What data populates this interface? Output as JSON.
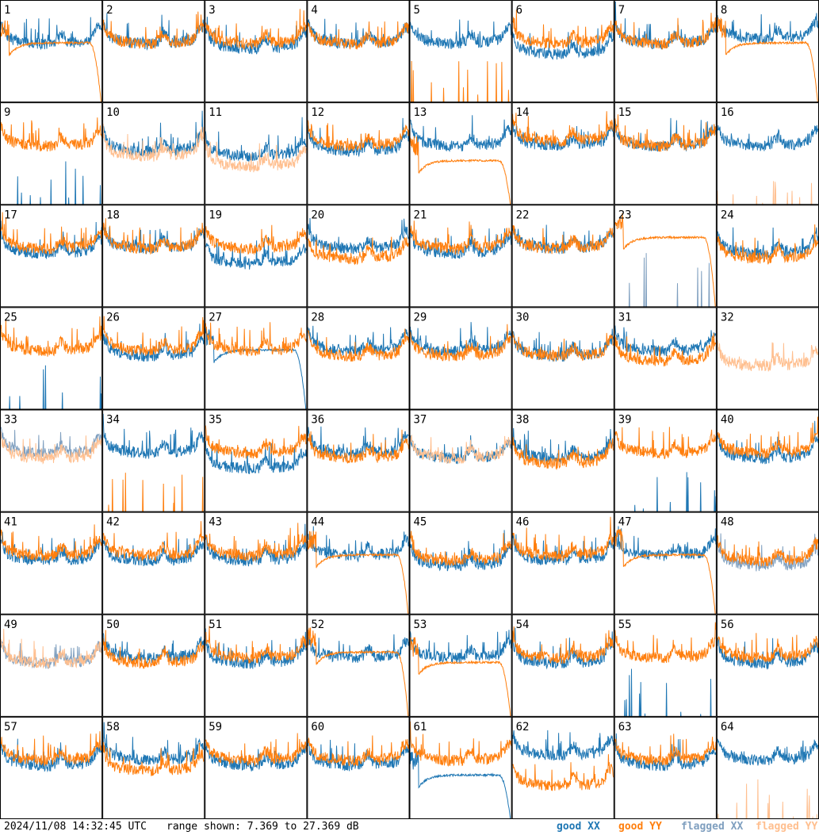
{
  "footer": {
    "timestamp": "2024/11/08 14:32:45 UTC",
    "range_text": "range shown: 7.369 to 27.369 dB"
  },
  "legend": [
    {
      "word": "good",
      "pol": "XX",
      "color": "#1f77b4"
    },
    {
      "word": "good",
      "pol": "YY",
      "color": "#ff7f0e"
    },
    {
      "word": "flagged",
      "pol": "XX",
      "color": "#7f9fbf"
    },
    {
      "word": "flagged",
      "pol": "YY",
      "color": "#ffbf8f"
    }
  ],
  "colors": {
    "good_xx": "#1f77b4",
    "good_yy": "#ff7f0e",
    "flagged_xx": "#7f9fbf",
    "flagged_yy": "#ffbf8f",
    "border": "#000000"
  },
  "chart_data": {
    "type": "line",
    "description_of_axes": "x: frequency channel (unlabeled); y: power in dB",
    "ylim": [
      7.369,
      27.369
    ],
    "grid_rows": 8,
    "grid_cols": 8,
    "panels": [
      {
        "label": "1",
        "xx": "good",
        "yy": "good",
        "xx_shape": "normal",
        "yy_shape": "rolloff",
        "xx_level": 20,
        "yy_level": 19
      },
      {
        "label": "2",
        "xx": "good",
        "yy": "good",
        "xx_shape": "normal",
        "yy_shape": "normal",
        "xx_level": 20,
        "yy_level": 20
      },
      {
        "label": "3",
        "xx": "good",
        "yy": "good",
        "xx_shape": "normal",
        "yy_shape": "normal",
        "xx_level": 19,
        "yy_level": 20
      },
      {
        "label": "4",
        "xx": "good",
        "yy": "good",
        "xx_shape": "normal",
        "yy_shape": "normal",
        "xx_level": 20,
        "yy_level": 20
      },
      {
        "label": "5",
        "xx": "good",
        "yy": "good",
        "xx_shape": "normal",
        "yy_shape": "spikes",
        "xx_level": 20,
        "yy_level": 8
      },
      {
        "label": "6",
        "xx": "good",
        "yy": "good",
        "xx_shape": "normal",
        "yy_shape": "normal",
        "xx_level": 18,
        "yy_level": 20
      },
      {
        "label": "7",
        "xx": "good",
        "yy": "good",
        "xx_shape": "normal",
        "yy_shape": "normal",
        "xx_level": 20,
        "yy_level": 20
      },
      {
        "label": "8",
        "xx": "good",
        "yy": "good",
        "xx_shape": "normal",
        "yy_shape": "rolloff",
        "xx_level": 21,
        "yy_level": 19
      },
      {
        "label": "9",
        "xx": "good",
        "yy": "good",
        "xx_shape": "spikes",
        "yy_shape": "normal",
        "xx_level": 8,
        "yy_level": 20
      },
      {
        "label": "10",
        "xx": "good",
        "yy": "flagged",
        "xx_shape": "normal",
        "yy_shape": "normal",
        "xx_level": 19,
        "yy_level": 18
      },
      {
        "label": "11",
        "xx": "good",
        "yy": "flagged",
        "xx_shape": "normal",
        "yy_shape": "normal",
        "xx_level": 18,
        "yy_level": 16
      },
      {
        "label": "12",
        "xx": "good",
        "yy": "good",
        "xx_shape": "normal",
        "yy_shape": "normal",
        "xx_level": 19,
        "yy_level": 20
      },
      {
        "label": "13",
        "xx": "good",
        "yy": "good",
        "xx_shape": "normal",
        "yy_shape": "rolloff",
        "xx_level": 20,
        "yy_level": 16
      },
      {
        "label": "14",
        "xx": "good",
        "yy": "good",
        "xx_shape": "normal",
        "yy_shape": "normal",
        "xx_level": 20,
        "yy_level": 21
      },
      {
        "label": "15",
        "xx": "good",
        "yy": "good",
        "xx_shape": "normal",
        "yy_shape": "normal",
        "xx_level": 20,
        "yy_level": 20
      },
      {
        "label": "16",
        "xx": "good",
        "yy": "flagged",
        "xx_shape": "normal",
        "yy_shape": "spikes",
        "xx_level": 20,
        "yy_level": 8
      },
      {
        "label": "17",
        "xx": "good",
        "yy": "good",
        "xx_shape": "normal",
        "yy_shape": "normal",
        "xx_level": 19,
        "yy_level": 20
      },
      {
        "label": "18",
        "xx": "good",
        "yy": "good",
        "xx_shape": "normal",
        "yy_shape": "normal",
        "xx_level": 20,
        "yy_level": 20
      },
      {
        "label": "19",
        "xx": "good",
        "yy": "good",
        "xx_shape": "normal",
        "yy_shape": "normal",
        "xx_level": 17,
        "yy_level": 20
      },
      {
        "label": "20",
        "xx": "good",
        "yy": "good",
        "xx_shape": "normal",
        "yy_shape": "normal",
        "xx_level": 20,
        "yy_level": 18
      },
      {
        "label": "21",
        "xx": "good",
        "yy": "good",
        "xx_shape": "normal",
        "yy_shape": "normal",
        "xx_level": 19,
        "yy_level": 20
      },
      {
        "label": "22",
        "xx": "good",
        "yy": "good",
        "xx_shape": "normal",
        "yy_shape": "normal",
        "xx_level": 20,
        "yy_level": 20
      },
      {
        "label": "23",
        "xx": "flagged",
        "yy": "good",
        "xx_shape": "spikes",
        "yy_shape": "rolloff",
        "xx_level": 10,
        "yy_level": 21
      },
      {
        "label": "24",
        "xx": "good",
        "yy": "good",
        "xx_shape": "normal",
        "yy_shape": "normal",
        "xx_level": 19,
        "yy_level": 18
      },
      {
        "label": "25",
        "xx": "good",
        "yy": "good",
        "xx_shape": "spikes",
        "yy_shape": "normal",
        "xx_level": 8,
        "yy_level": 20
      },
      {
        "label": "26",
        "xx": "good",
        "yy": "good",
        "xx_shape": "normal",
        "yy_shape": "normal",
        "xx_level": 19,
        "yy_level": 20
      },
      {
        "label": "27",
        "xx": "good",
        "yy": "good",
        "xx_shape": "rolloff",
        "yy_shape": "normal",
        "xx_level": 19,
        "yy_level": 20
      },
      {
        "label": "28",
        "xx": "good",
        "yy": "good",
        "xx_shape": "normal",
        "yy_shape": "normal",
        "xx_level": 20,
        "yy_level": 19
      },
      {
        "label": "29",
        "xx": "good",
        "yy": "good",
        "xx_shape": "normal",
        "yy_shape": "normal",
        "xx_level": 20,
        "yy_level": 19
      },
      {
        "label": "30",
        "xx": "good",
        "yy": "good",
        "xx_shape": "normal",
        "yy_shape": "normal",
        "xx_level": 19,
        "yy_level": 19
      },
      {
        "label": "31",
        "xx": "good",
        "yy": "good",
        "xx_shape": "normal",
        "yy_shape": "normal",
        "xx_level": 20,
        "yy_level": 18
      },
      {
        "label": "32",
        "xx": "flagged",
        "yy": "flagged",
        "xx_shape": "none",
        "yy_shape": "normal",
        "xx_level": 8,
        "yy_level": 17
      },
      {
        "label": "33",
        "xx": "flagged",
        "yy": "flagged",
        "xx_shape": "normal",
        "yy_shape": "normal",
        "xx_level": 20,
        "yy_level": 19
      },
      {
        "label": "34",
        "xx": "good",
        "yy": "good",
        "xx_shape": "normal",
        "yy_shape": "spikes",
        "xx_level": 20,
        "yy_level": 8
      },
      {
        "label": "35",
        "xx": "good",
        "yy": "good",
        "xx_shape": "normal",
        "yy_shape": "normal",
        "xx_level": 17,
        "yy_level": 20
      },
      {
        "label": "36",
        "xx": "good",
        "yy": "good",
        "xx_shape": "normal",
        "yy_shape": "normal",
        "xx_level": 20,
        "yy_level": 19
      },
      {
        "label": "37",
        "xx": "good",
        "yy": "flagged",
        "xx_shape": "normal",
        "yy_shape": "normal",
        "xx_level": 19,
        "yy_level": 19
      },
      {
        "label": "38",
        "xx": "good",
        "yy": "good",
        "xx_shape": "normal",
        "yy_shape": "normal",
        "xx_level": 19,
        "yy_level": 18
      },
      {
        "label": "39",
        "xx": "good",
        "yy": "good",
        "xx_shape": "spikes",
        "yy_shape": "normal",
        "xx_level": 8,
        "yy_level": 20
      },
      {
        "label": "40",
        "xx": "good",
        "yy": "good",
        "xx_shape": "normal",
        "yy_shape": "normal",
        "xx_level": 19,
        "yy_level": 20
      },
      {
        "label": "41",
        "xx": "good",
        "yy": "good",
        "xx_shape": "normal",
        "yy_shape": "normal",
        "xx_level": 19,
        "yy_level": 20
      },
      {
        "label": "42",
        "xx": "good",
        "yy": "good",
        "xx_shape": "normal",
        "yy_shape": "normal",
        "xx_level": 19,
        "yy_level": 20
      },
      {
        "label": "43",
        "xx": "good",
        "yy": "good",
        "xx_shape": "normal",
        "yy_shape": "normal",
        "xx_level": 19,
        "yy_level": 20
      },
      {
        "label": "44",
        "xx": "good",
        "yy": "good",
        "xx_shape": "normal",
        "yy_shape": "rolloff",
        "xx_level": 20,
        "yy_level": 19
      },
      {
        "label": "45",
        "xx": "good",
        "yy": "good",
        "xx_shape": "normal",
        "yy_shape": "normal",
        "xx_level": 18,
        "yy_level": 19
      },
      {
        "label": "46",
        "xx": "good",
        "yy": "good",
        "xx_shape": "normal",
        "yy_shape": "normal",
        "xx_level": 19,
        "yy_level": 20
      },
      {
        "label": "47",
        "xx": "good",
        "yy": "good",
        "xx_shape": "normal",
        "yy_shape": "rolloff",
        "xx_level": 20,
        "yy_level": 19
      },
      {
        "label": "48",
        "xx": "flagged",
        "yy": "good",
        "xx_shape": "normal",
        "yy_shape": "normal",
        "xx_level": 18,
        "yy_level": 19
      },
      {
        "label": "49",
        "xx": "flagged",
        "yy": "flagged",
        "xx_shape": "normal",
        "yy_shape": "normal",
        "xx_level": 19,
        "yy_level": 19
      },
      {
        "label": "50",
        "xx": "good",
        "yy": "good",
        "xx_shape": "normal",
        "yy_shape": "normal",
        "xx_level": 20,
        "yy_level": 19
      },
      {
        "label": "51",
        "xx": "good",
        "yy": "good",
        "xx_shape": "normal",
        "yy_shape": "normal",
        "xx_level": 19,
        "yy_level": 20
      },
      {
        "label": "52",
        "xx": "good",
        "yy": "good",
        "xx_shape": "normal",
        "yy_shape": "rolloff",
        "xx_level": 20,
        "yy_level": 20
      },
      {
        "label": "53",
        "xx": "good",
        "yy": "good",
        "xx_shape": "normal",
        "yy_shape": "rolloff",
        "xx_level": 20,
        "yy_level": 18
      },
      {
        "label": "54",
        "xx": "good",
        "yy": "good",
        "xx_shape": "normal",
        "yy_shape": "normal",
        "xx_level": 19,
        "yy_level": 20
      },
      {
        "label": "55",
        "xx": "good",
        "yy": "good",
        "xx_shape": "spikes",
        "yy_shape": "normal",
        "xx_level": 10,
        "yy_level": 20
      },
      {
        "label": "56",
        "xx": "good",
        "yy": "good",
        "xx_shape": "normal",
        "yy_shape": "normal",
        "xx_level": 19,
        "yy_level": 20
      },
      {
        "label": "57",
        "xx": "good",
        "yy": "good",
        "xx_shape": "normal",
        "yy_shape": "normal",
        "xx_level": 19,
        "yy_level": 20
      },
      {
        "label": "58",
        "xx": "good",
        "yy": "good",
        "xx_shape": "normal",
        "yy_shape": "normal",
        "xx_level": 20,
        "yy_level": 18
      },
      {
        "label": "59",
        "xx": "good",
        "yy": "good",
        "xx_shape": "normal",
        "yy_shape": "normal",
        "xx_level": 19,
        "yy_level": 20
      },
      {
        "label": "60",
        "xx": "good",
        "yy": "good",
        "xx_shape": "normal",
        "yy_shape": "normal",
        "xx_level": 19,
        "yy_level": 20
      },
      {
        "label": "61",
        "xx": "good",
        "yy": "good",
        "xx_shape": "rolloff",
        "yy_shape": "normal",
        "xx_level": 16,
        "yy_level": 20
      },
      {
        "label": "62",
        "xx": "good",
        "yy": "good",
        "xx_shape": "normal",
        "yy_shape": "normal",
        "xx_level": 21,
        "yy_level": 15
      },
      {
        "label": "63",
        "xx": "good",
        "yy": "good",
        "xx_shape": "normal",
        "yy_shape": "normal",
        "xx_level": 19,
        "yy_level": 20
      },
      {
        "label": "64",
        "xx": "good",
        "yy": "flagged",
        "xx_shape": "normal",
        "yy_shape": "spikes",
        "xx_level": 20,
        "yy_level": 8
      }
    ]
  }
}
